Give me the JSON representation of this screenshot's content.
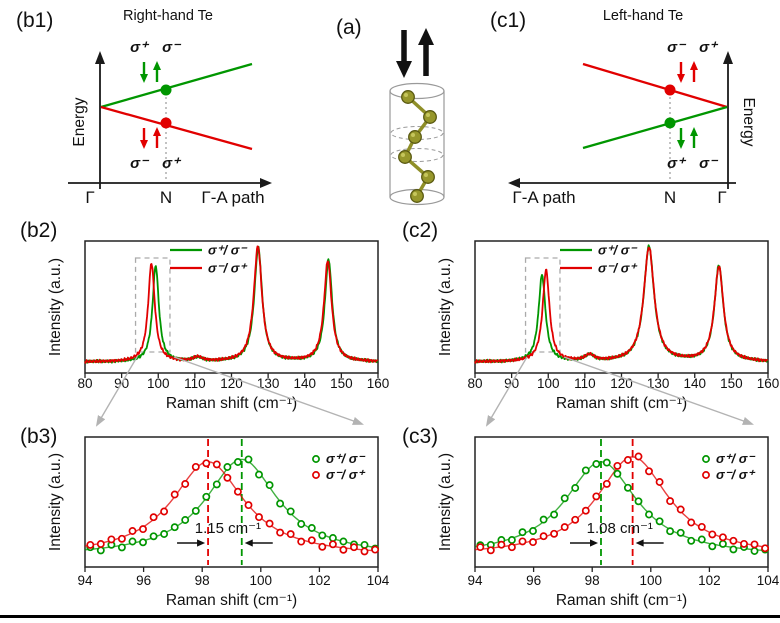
{
  "panels": {
    "b1": {
      "label": "(b1)",
      "title": "Right-hand Te",
      "ylabel": "Energy",
      "x_start": "Γ",
      "x_mid": "N",
      "x_end": "Γ-A path",
      "upper_left": "σ⁺",
      "upper_right": "σ⁻",
      "lower_left": "σ⁻",
      "lower_right": "σ⁺"
    },
    "a": {
      "label": "(a)"
    },
    "c1": {
      "label": "(c1)",
      "title": "Left-hand Te",
      "ylabel": "Energy",
      "x_start": "Γ-A path",
      "x_mid": "N",
      "x_end": "Γ",
      "upper_left": "σ⁻",
      "upper_right": "σ⁺",
      "lower_left": "σ⁺",
      "lower_right": "σ⁻"
    },
    "b2": {
      "label": "(b2)"
    },
    "c2": {
      "label": "(c2)"
    },
    "b3": {
      "label": "(b3)"
    },
    "c3": {
      "label": "(c3)"
    }
  },
  "colors": {
    "green": "#009600",
    "red": "#e10000",
    "gray_connector": "#b3b3b3",
    "axis": "#1a1a1a",
    "olive": "#97972b",
    "olive_dark": "#5a5a12",
    "dashed_box": "#aaaaaa"
  },
  "chart_data": [
    {
      "id": "b2",
      "type": "line",
      "xlabel": "Raman shift (cm⁻¹)",
      "ylabel": "Intensity (a.u.)",
      "xlim": [
        80,
        160
      ],
      "xticks": [
        80,
        90,
        100,
        110,
        120,
        130,
        140,
        150,
        160
      ],
      "grid": false,
      "legend_position": "top-center",
      "legend": [
        {
          "label": "σ⁺/ σ⁻",
          "color": "green"
        },
        {
          "label": "σ⁻/ σ⁺",
          "color": "red"
        }
      ],
      "series": [
        {
          "name": "σ⁺/ σ⁻",
          "color": "green",
          "baseline": 0.05,
          "peaks": [
            {
              "center": 99.3,
              "height": 0.8,
              "fwhm": 2.1
            },
            {
              "center": 110.8,
              "height": 0.03,
              "fwhm": 3.0
            },
            {
              "center": 127.3,
              "height": 0.95,
              "fwhm": 2.6
            },
            {
              "center": 146.5,
              "height": 0.85,
              "fwhm": 2.4
            }
          ]
        },
        {
          "name": "σ⁻/ σ⁺",
          "color": "red",
          "baseline": 0.05,
          "peaks": [
            {
              "center": 98.15,
              "height": 0.82,
              "fwhm": 2.2
            },
            {
              "center": 110.8,
              "height": 0.035,
              "fwhm": 3.0
            },
            {
              "center": 127.2,
              "height": 0.96,
              "fwhm": 2.7
            },
            {
              "center": 146.3,
              "height": 0.84,
              "fwhm": 2.5
            }
          ]
        }
      ],
      "zoom_box_x": [
        93.8,
        103.2
      ]
    },
    {
      "id": "c2",
      "type": "line",
      "xlabel": "Raman shift (cm⁻¹)",
      "ylabel": "Intensity (a.u.)",
      "xlim": [
        80,
        160
      ],
      "xticks": [
        80,
        90,
        100,
        110,
        120,
        130,
        140,
        150,
        160
      ],
      "grid": false,
      "legend_position": "top-center",
      "legend": [
        {
          "label": "σ⁺/ σ⁻",
          "color": "green"
        },
        {
          "label": "σ⁻/ σ⁺",
          "color": "red"
        }
      ],
      "series": [
        {
          "name": "σ⁺/ σ⁻",
          "color": "green",
          "baseline": 0.05,
          "peaks": [
            {
              "center": 98.3,
              "height": 0.72,
              "fwhm": 2.3
            },
            {
              "center": 111.3,
              "height": 0.05,
              "fwhm": 3.0
            },
            {
              "center": 127.5,
              "height": 0.96,
              "fwhm": 3.4
            },
            {
              "center": 146.6,
              "height": 0.8,
              "fwhm": 2.9
            }
          ]
        },
        {
          "name": "σ⁻/ σ⁺",
          "color": "red",
          "baseline": 0.05,
          "peaks": [
            {
              "center": 99.4,
              "height": 0.76,
              "fwhm": 2.3
            },
            {
              "center": 111.3,
              "height": 0.05,
              "fwhm": 3.0
            },
            {
              "center": 127.5,
              "height": 0.95,
              "fwhm": 3.5
            },
            {
              "center": 146.6,
              "height": 0.79,
              "fwhm": 3.0
            }
          ]
        }
      ],
      "zoom_box_x": [
        93.8,
        103.2
      ]
    },
    {
      "id": "b3",
      "type": "scatter",
      "xlabel": "Raman shift (cm⁻¹)",
      "ylabel": "Intensity (a.u.)",
      "xlim": [
        94,
        104
      ],
      "xticks": [
        94,
        96,
        98,
        100,
        102,
        104
      ],
      "grid": false,
      "legend_position": "top-right",
      "legend": [
        {
          "label": "σ⁺/ σ⁻",
          "color": "green"
        },
        {
          "label": "σ⁻/ σ⁺",
          "color": "red"
        }
      ],
      "series": [
        {
          "name": "σ⁺/ σ⁻",
          "color": "green",
          "center": 99.35,
          "height": 0.8,
          "fwhm": 3.0,
          "baseline": 0.05
        },
        {
          "name": "σ⁻/ σ⁺",
          "color": "red",
          "center": 98.2,
          "height": 0.78,
          "fwhm": 3.0,
          "baseline": 0.05
        }
      ],
      "dashed_lines": [
        {
          "x": 98.2,
          "color": "red"
        },
        {
          "x": 99.35,
          "color": "green"
        }
      ],
      "split_label": "1.15 cm⁻¹"
    },
    {
      "id": "c3",
      "type": "scatter",
      "xlabel": "Raman shift (cm⁻¹)",
      "ylabel": "Intensity (a.u.)",
      "xlim": [
        94,
        104
      ],
      "xticks": [
        94,
        96,
        98,
        100,
        102,
        104
      ],
      "grid": false,
      "legend_position": "top-right",
      "legend": [
        {
          "label": "σ⁺/ σ⁻",
          "color": "green"
        },
        {
          "label": "σ⁻/ σ⁺",
          "color": "red"
        }
      ],
      "series": [
        {
          "name": "σ⁺/ σ⁻",
          "color": "green",
          "center": 98.3,
          "height": 0.78,
          "fwhm": 3.0,
          "baseline": 0.05
        },
        {
          "name": "σ⁻/ σ⁺",
          "color": "red",
          "center": 99.38,
          "height": 0.82,
          "fwhm": 3.0,
          "baseline": 0.05
        }
      ],
      "dashed_lines": [
        {
          "x": 98.3,
          "color": "green"
        },
        {
          "x": 99.38,
          "color": "red"
        }
      ],
      "split_label": "1.08 cm⁻¹"
    }
  ]
}
